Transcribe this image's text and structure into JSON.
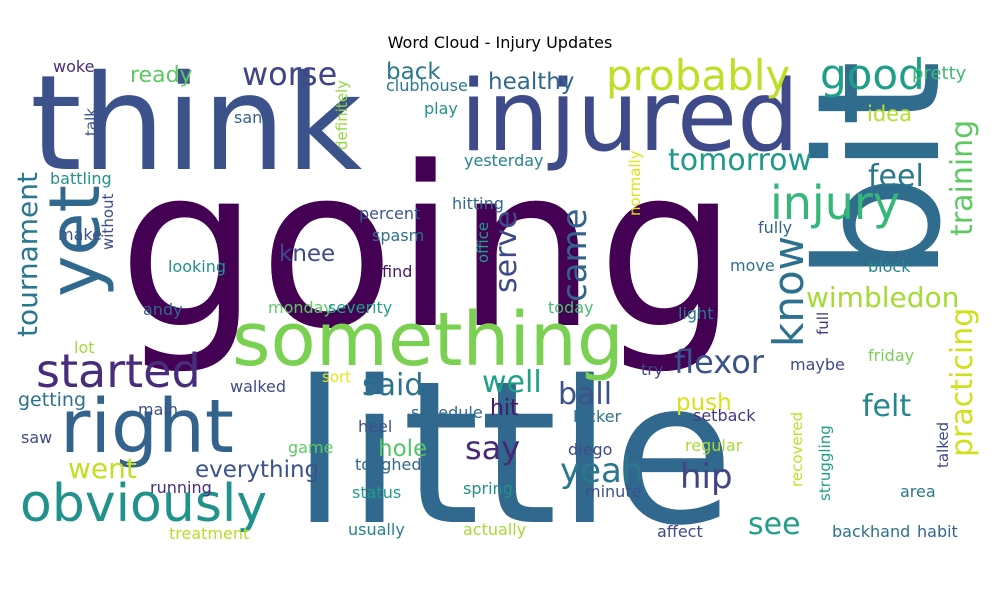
{
  "chart_data": {
    "type": "wordcloud",
    "title": "Word Cloud - Injury Updates",
    "words": [
      {
        "text": "going",
        "color": "#440154"
      },
      {
        "text": "little",
        "color": "#31688e"
      },
      {
        "text": "bit",
        "color": "#2f6c8e"
      },
      {
        "text": "think",
        "color": "#3b528b"
      },
      {
        "text": "injured",
        "color": "#3e4a89"
      },
      {
        "text": "something",
        "color": "#7ad151"
      },
      {
        "text": "right",
        "color": "#33638d"
      },
      {
        "text": "yet",
        "color": "#31688e"
      },
      {
        "text": "obviously",
        "color": "#21918c"
      },
      {
        "text": "started",
        "color": "#472d7b"
      },
      {
        "text": "probably",
        "color": "#bddf26"
      },
      {
        "text": "good",
        "color": "#1f9e89"
      },
      {
        "text": "injury",
        "color": "#35b779"
      },
      {
        "text": "know",
        "color": "#2c728e"
      },
      {
        "text": "training",
        "color": "#5ec962"
      },
      {
        "text": "practicing",
        "color": "#d0e11c"
      },
      {
        "text": "tournament",
        "color": "#2a788e"
      },
      {
        "text": "wimbledon",
        "color": "#a5db36"
      },
      {
        "text": "worse",
        "color": "#414487"
      },
      {
        "text": "tomorrow",
        "color": "#1f9a8a"
      },
      {
        "text": "feel",
        "color": "#2a788e"
      },
      {
        "text": "felt",
        "color": "#24868e"
      },
      {
        "text": "serve",
        "color": "#3e4a89"
      },
      {
        "text": "came",
        "color": "#33638d"
      },
      {
        "text": "flexor",
        "color": "#3b528b"
      },
      {
        "text": "said",
        "color": "#2c728e"
      },
      {
        "text": "well",
        "color": "#1fa187"
      },
      {
        "text": "ball",
        "color": "#3b528b"
      },
      {
        "text": "say",
        "color": "#482878"
      },
      {
        "text": "yeah",
        "color": "#2a788e"
      },
      {
        "text": "hip",
        "color": "#414487"
      },
      {
        "text": "went",
        "color": "#c2df23"
      },
      {
        "text": "everything",
        "color": "#3b528b"
      },
      {
        "text": "see",
        "color": "#1f9e89"
      },
      {
        "text": "push",
        "color": "#d8e219"
      },
      {
        "text": "knee",
        "color": "#3e4a89"
      },
      {
        "text": "healthy",
        "color": "#31688e"
      },
      {
        "text": "back",
        "color": "#2a788e"
      },
      {
        "text": "ready",
        "color": "#5ec962"
      },
      {
        "text": "hit",
        "color": "#48186a"
      },
      {
        "text": "hole",
        "color": "#54c568"
      },
      {
        "text": "getting",
        "color": "#2c728e"
      },
      {
        "text": "idea",
        "color": "#b5de2b"
      },
      {
        "text": "pretty",
        "color": "#3dbc74"
      },
      {
        "text": "woke",
        "color": "#472d7b"
      },
      {
        "text": "clubhouse",
        "color": "#2a788e"
      },
      {
        "text": "play",
        "color": "#21918c"
      },
      {
        "text": "san",
        "color": "#33638d"
      },
      {
        "text": "talk",
        "color": "#3b528b"
      },
      {
        "text": "definitely",
        "color": "#95d840"
      },
      {
        "text": "yesterday",
        "color": "#26828e"
      },
      {
        "text": "battling",
        "color": "#21918c"
      },
      {
        "text": "without",
        "color": "#3e4a89"
      },
      {
        "text": "normally",
        "color": "#dde318"
      },
      {
        "text": "hitting",
        "color": "#31688e"
      },
      {
        "text": "percent",
        "color": "#39558c"
      },
      {
        "text": "spasm",
        "color": "#2c728e"
      },
      {
        "text": "office",
        "color": "#1f9e89"
      },
      {
        "text": "make",
        "color": "#3b528b"
      },
      {
        "text": "looking",
        "color": "#21918c"
      },
      {
        "text": "fully",
        "color": "#33638d"
      },
      {
        "text": "block",
        "color": "#24868e"
      },
      {
        "text": "find",
        "color": "#48186a"
      },
      {
        "text": "move",
        "color": "#2c728e"
      },
      {
        "text": "monday",
        "color": "#5ec962"
      },
      {
        "text": "severity",
        "color": "#1fa187"
      },
      {
        "text": "today",
        "color": "#46c06f"
      },
      {
        "text": "andy",
        "color": "#31688e"
      },
      {
        "text": "light",
        "color": "#2a788e"
      },
      {
        "text": "full",
        "color": "#453781"
      },
      {
        "text": "lot",
        "color": "#a0da39"
      },
      {
        "text": "friday",
        "color": "#7ad151"
      },
      {
        "text": "try",
        "color": "#414487"
      },
      {
        "text": "maybe",
        "color": "#3e4a89"
      },
      {
        "text": "sort",
        "color": "#e5e419"
      },
      {
        "text": "walked",
        "color": "#3e4a89"
      },
      {
        "text": "main",
        "color": "#3b528b"
      },
      {
        "text": "schedule",
        "color": "#31688e"
      },
      {
        "text": "locker",
        "color": "#2c728e"
      },
      {
        "text": "setback",
        "color": "#453781"
      },
      {
        "text": "saw",
        "color": "#3e4a89"
      },
      {
        "text": "heel",
        "color": "#3b528b"
      },
      {
        "text": "game",
        "color": "#5ec962"
      },
      {
        "text": "diego",
        "color": "#3e4a89"
      },
      {
        "text": "recovered",
        "color": "#c2df23"
      },
      {
        "text": "regular",
        "color": "#a5db36"
      },
      {
        "text": "talked",
        "color": "#3e4a89"
      },
      {
        "text": "struggling",
        "color": "#1fa187"
      },
      {
        "text": "toughed",
        "color": "#31688e"
      },
      {
        "text": "minute",
        "color": "#3b528b"
      },
      {
        "text": "running",
        "color": "#472d7b"
      },
      {
        "text": "spring",
        "color": "#21918c"
      },
      {
        "text": "status",
        "color": "#1f9e89"
      },
      {
        "text": "area",
        "color": "#2a788e"
      },
      {
        "text": "usually",
        "color": "#26828e"
      },
      {
        "text": "actually",
        "color": "#a5db36"
      },
      {
        "text": "affect",
        "color": "#3e4a89"
      },
      {
        "text": "backhand",
        "color": "#2c728e"
      },
      {
        "text": "habit",
        "color": "#31688e"
      },
      {
        "text": "treatment",
        "color": "#b5de2b"
      }
    ]
  }
}
